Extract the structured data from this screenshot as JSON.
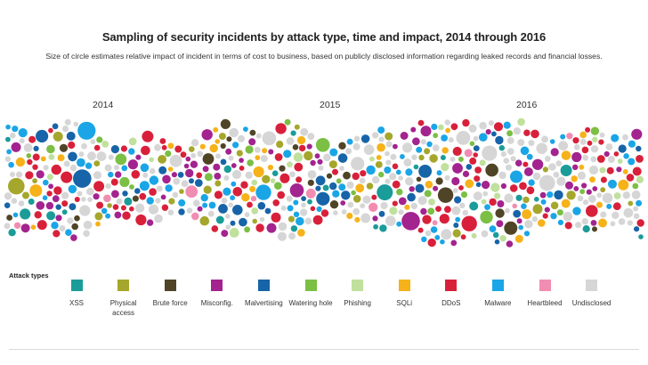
{
  "title": "Sampling of security incidents by attack type, time and impact, 2014 through 2016",
  "subtitle": "Size of circle estimates relative impact of incident in terms of cost to business, based on publicly disclosed information regarding leaked records and financial losses.",
  "chart_data": {
    "type": "scatter",
    "title": "Sampling of security incidents by attack type, time and impact, 2014 through 2016",
    "x_axis_labels": [
      "2014",
      "2015",
      "2016"
    ],
    "legend_title": "Attack types",
    "legend_position": "bottom",
    "categories": [
      {
        "key": "xss",
        "label": "XSS",
        "color": "#1a9c99"
      },
      {
        "key": "physical",
        "label": "Physical access",
        "color": "#a5a72c"
      },
      {
        "key": "brute",
        "label": "Brute force",
        "color": "#4f4426"
      },
      {
        "key": "misconfig",
        "label": "Misconfig.",
        "color": "#a3238f"
      },
      {
        "key": "malvertising",
        "label": "Malvertising",
        "color": "#1764a8"
      },
      {
        "key": "watering",
        "label": "Watering hole",
        "color": "#7bbf45"
      },
      {
        "key": "phishing",
        "label": "Phishing",
        "color": "#c0e09d"
      },
      {
        "key": "sqli",
        "label": "SQLi",
        "color": "#f6b219"
      },
      {
        "key": "ddos",
        "label": "DDoS",
        "color": "#d9203a"
      },
      {
        "key": "malware",
        "label": "Malware",
        "color": "#1aa5e6"
      },
      {
        "key": "heartbleed",
        "label": "Heartbleed",
        "color": "#f28db2"
      },
      {
        "key": "undisclosed",
        "label": "Undisclosed",
        "color": "#d6d6d6"
      }
    ]
  }
}
